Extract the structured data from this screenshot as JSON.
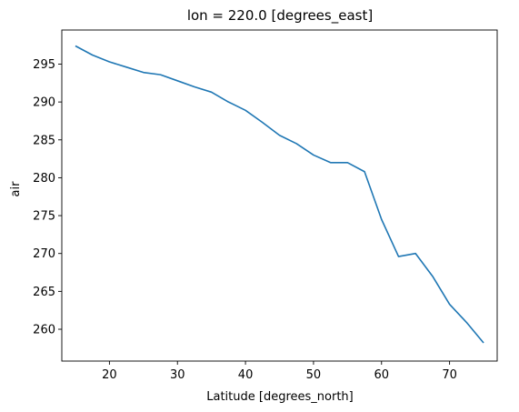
{
  "chart_data": {
    "type": "line",
    "title": "lon = 220.0 [degrees_east]",
    "xlabel": "Latitude [degrees_north]",
    "ylabel": "air",
    "xlim": [
      13,
      77
    ],
    "ylim": [
      255.8,
      299.5
    ],
    "xticks": [
      20,
      30,
      40,
      50,
      60,
      70
    ],
    "yticks": [
      260,
      265,
      270,
      275,
      280,
      285,
      290,
      295
    ],
    "grid": false,
    "series": [
      {
        "color": "#1f77b4",
        "x": [
          15,
          17.5,
          20,
          22.5,
          25,
          27.5,
          30,
          32.5,
          35,
          37.5,
          40,
          42.5,
          45,
          47.5,
          50,
          52.5,
          55,
          57.5,
          60,
          62.5,
          65,
          67.5,
          70,
          72.5,
          75
        ],
        "y": [
          297.4,
          296.2,
          295.3,
          294.6,
          293.9,
          293.6,
          292.8,
          292.0,
          291.3,
          290.0,
          288.9,
          287.3,
          285.6,
          284.5,
          283.0,
          282.0,
          282.0,
          280.8,
          274.5,
          269.6,
          270.0,
          267.0,
          263.3,
          260.9,
          258.2
        ]
      }
    ]
  }
}
